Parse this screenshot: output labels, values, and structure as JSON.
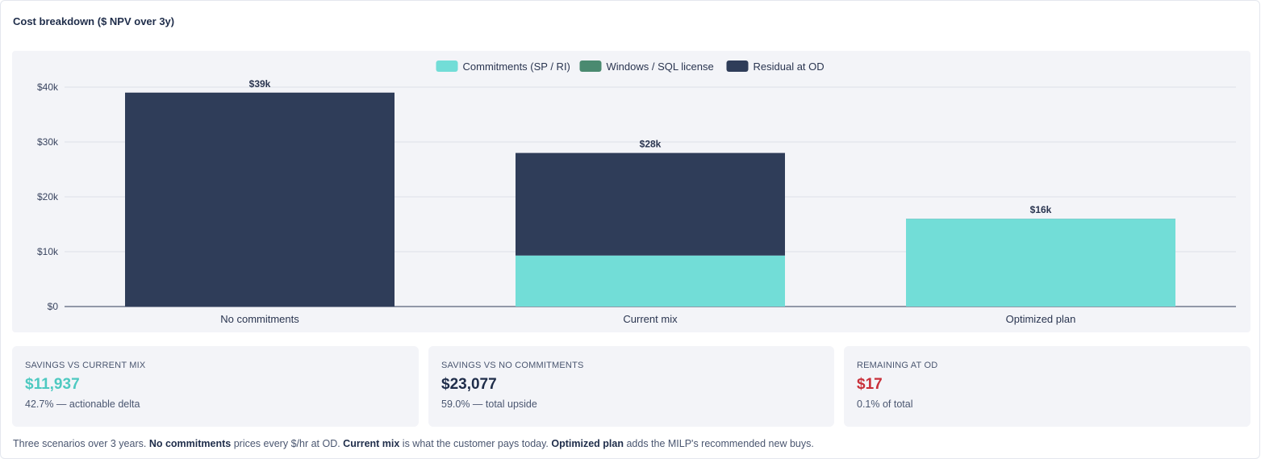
{
  "title": "Cost breakdown ($ NPV over 3y)",
  "colors": {
    "commitments": "#72ddd7",
    "windows_sql": "#4a8a70",
    "residual": "#2f3d59",
    "accent_teal": "#4ec9c1",
    "accent_red": "#c9303a",
    "dark": "#1f2d4a"
  },
  "chart_data": {
    "type": "bar",
    "stacked": true,
    "categories": [
      "No commitments",
      "Current mix",
      "Optimized plan"
    ],
    "series": [
      {
        "name": "Commitments (SP / RI)",
        "values": [
          0,
          9300,
          16000
        ]
      },
      {
        "name": "Windows / SQL license",
        "values": [
          0,
          0,
          0
        ]
      },
      {
        "name": "Residual at OD",
        "values": [
          39000,
          18700,
          17
        ]
      }
    ],
    "totals_labels": [
      "$39k",
      "$28k",
      "$16k"
    ],
    "y_ticks": [
      {
        "value": 0,
        "label": "$0"
      },
      {
        "value": 10000,
        "label": "$10k"
      },
      {
        "value": 20000,
        "label": "$20k"
      },
      {
        "value": 30000,
        "label": "$30k"
      },
      {
        "value": 40000,
        "label": "$40k"
      }
    ],
    "ylim": [
      0,
      40000
    ],
    "legend_position": "top-center",
    "grid": true
  },
  "stats": [
    {
      "label": "SAVINGS VS CURRENT MIX",
      "value": "$11,937",
      "sub": "42.7% — actionable delta",
      "tone": "teal"
    },
    {
      "label": "SAVINGS VS NO COMMITMENTS",
      "value": "$23,077",
      "sub": "59.0% — total upside",
      "tone": "dark"
    },
    {
      "label": "REMAINING AT OD",
      "value": "$17",
      "sub": "0.1% of total",
      "tone": "red"
    }
  ],
  "footer": {
    "t1": "Three scenarios over 3 years. ",
    "b1": "No commitments",
    "t2": " prices every $/hr at OD. ",
    "b2": "Current mix",
    "t3": " is what the customer pays today. ",
    "b3": "Optimized plan",
    "t4": " adds the MILP's recommended new buys."
  }
}
